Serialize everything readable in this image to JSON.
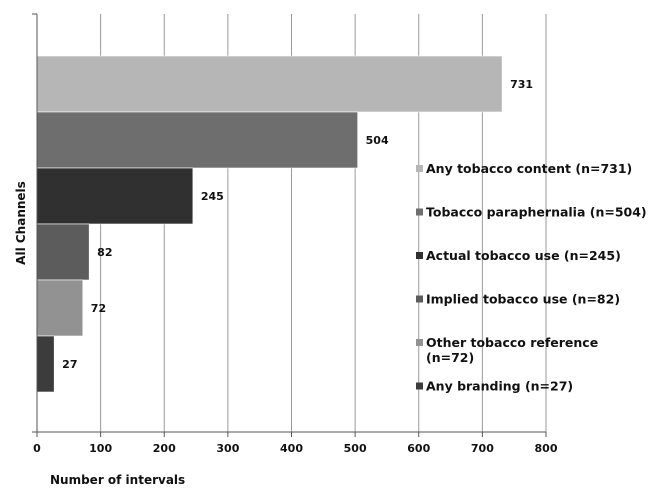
{
  "chart_data": {
    "type": "bar",
    "orientation": "horizontal",
    "title": "",
    "xlabel": "Number of intervals",
    "ylabel": "All Channels",
    "xlim": [
      0,
      800
    ],
    "xticks": [
      "0",
      "100",
      "200",
      "300",
      "400",
      "500",
      "600",
      "700",
      "800"
    ],
    "grid": true,
    "legend_position": "right",
    "series": [
      {
        "name": "Any tobacco content (n=731)",
        "legend_lines": [
          "Any tobacco content (n=731)"
        ],
        "value": 731,
        "value_label": "731",
        "color": "#b6b6b6"
      },
      {
        "name": "Tobacco paraphernalia (n=504)",
        "legend_lines": [
          "Tobacco paraphernalia (n=504)"
        ],
        "value": 504,
        "value_label": "504",
        "color": "#6e6e6e"
      },
      {
        "name": "Actual tobacco use (n=245)",
        "legend_lines": [
          "Actual tobacco use (n=245)"
        ],
        "value": 245,
        "value_label": "245",
        "color": "#303030"
      },
      {
        "name": "Implied tobacco use (n=82)",
        "legend_lines": [
          "Implied tobacco use (n=82)"
        ],
        "value": 82,
        "value_label": "82",
        "color": "#5c5c5c"
      },
      {
        "name": "Other tobacco reference (n=72)",
        "legend_lines": [
          "Other tobacco reference",
          "(n=72)"
        ],
        "value": 72,
        "value_label": "72",
        "color": "#929292"
      },
      {
        "name": "Any branding (n=27)",
        "legend_lines": [
          "Any branding (n=27)"
        ],
        "value": 27,
        "value_label": "27",
        "color": "#3c3c3c"
      }
    ]
  }
}
